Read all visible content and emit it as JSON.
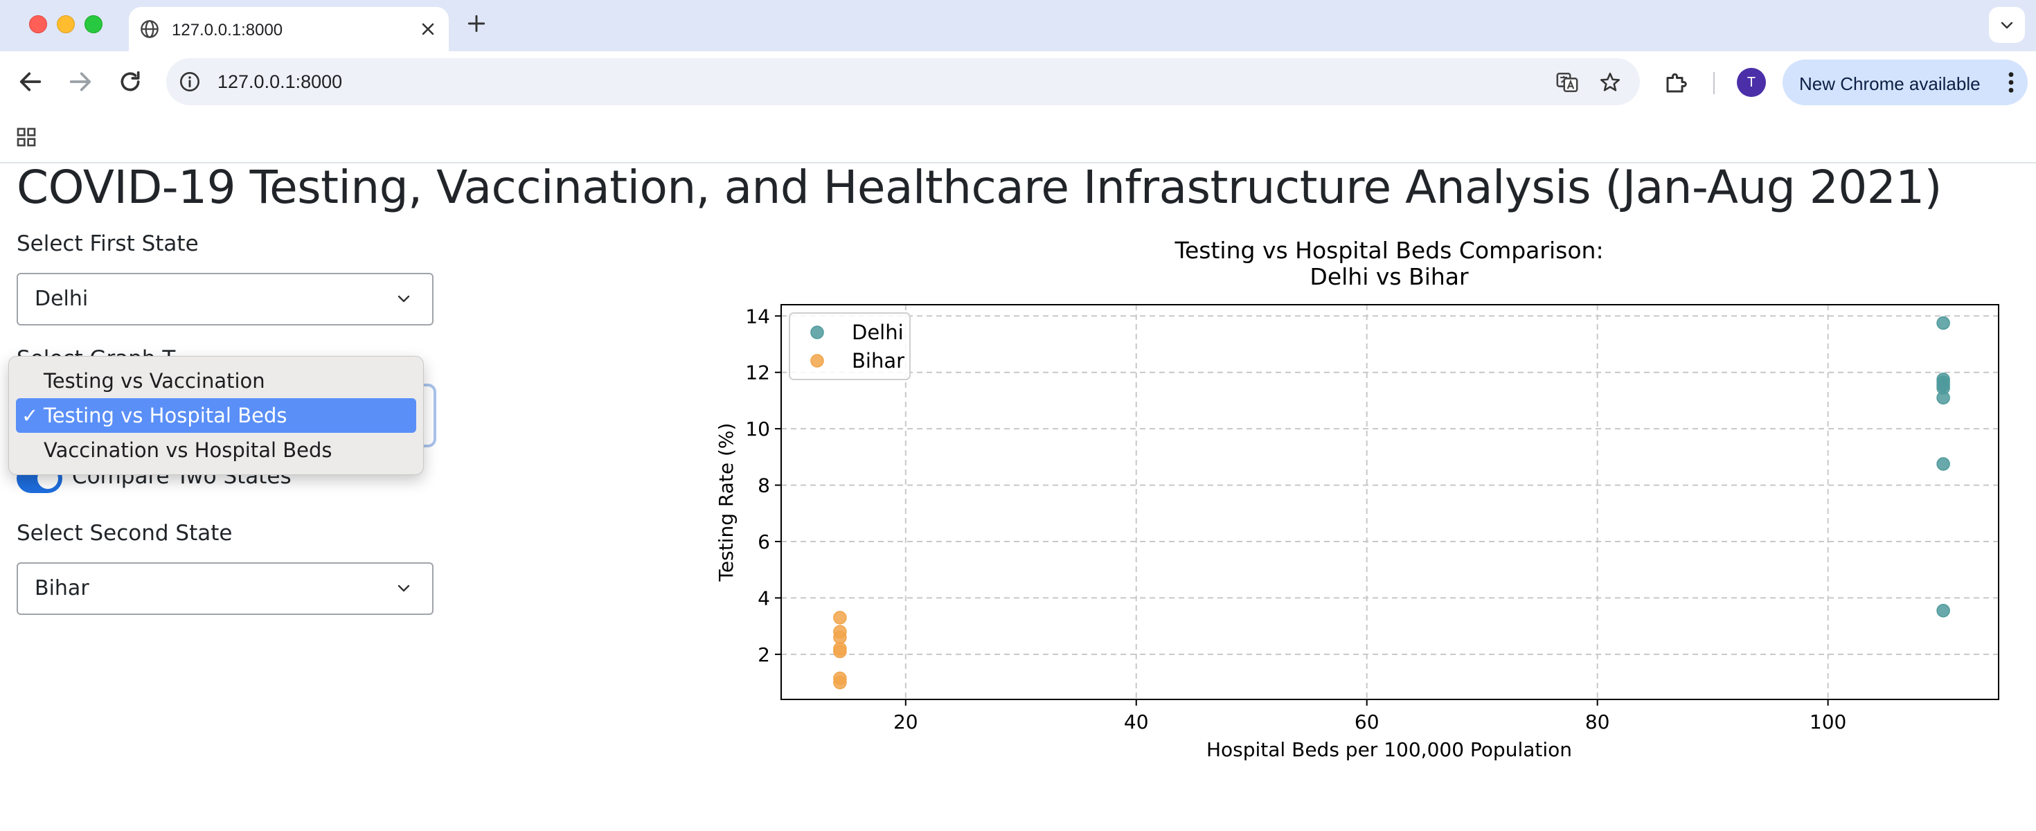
{
  "browser": {
    "tab_title": "127.0.0.1:8000",
    "url": "127.0.0.1:8000",
    "avatar_letter": "T",
    "update_button": "New Chrome available"
  },
  "page": {
    "title": "COVID-19 Testing, Vaccination, and Healthcare Infrastructure Analysis (Jan-Aug 2021)",
    "first_state_label": "Select First State",
    "first_state_value": "Delhi",
    "graph_type_label_partial": "Select Graph T",
    "graph_type_options": [
      "Testing vs Vaccination",
      "Testing vs Hospital Beds",
      "Vaccination vs Hospital Beds"
    ],
    "graph_type_selected": "Testing vs Hospital Beds",
    "check_mark": "✓",
    "compare_label": "Compare Two States",
    "compare_on": true,
    "second_state_label": "Select Second State",
    "second_state_value": "Bihar"
  },
  "colors": {
    "delhi": "#4f9a9c",
    "bihar": "#f2a44a",
    "toggle_on": "#1e6ddd",
    "dropdown_highlight": "#5a8ff7"
  },
  "chart_data": {
    "type": "scatter",
    "title_line1": "Testing vs Hospital Beds Comparison:",
    "title_line2": "Delhi vs Bihar",
    "xlabel": "Hospital Beds per 100,000 Population",
    "ylabel": "Testing Rate (%)",
    "xlim": [
      9.2,
      114.8
    ],
    "ylim": [
      0.4,
      14.4
    ],
    "xticks": [
      20,
      40,
      60,
      80,
      100
    ],
    "yticks": [
      2,
      4,
      6,
      8,
      10,
      12,
      14
    ],
    "grid": true,
    "legend_position": "upper-left",
    "series": [
      {
        "name": "Delhi",
        "color": "#4f9a9c",
        "points": [
          [
            110,
            13.75
          ],
          [
            110,
            11.75
          ],
          [
            110,
            11.65
          ],
          [
            110,
            11.55
          ],
          [
            110,
            11.45
          ],
          [
            110,
            11.1
          ],
          [
            110,
            8.75
          ],
          [
            110,
            3.55
          ]
        ]
      },
      {
        "name": "Bihar",
        "color": "#f2a44a",
        "points": [
          [
            14.3,
            3.3
          ],
          [
            14.3,
            2.8
          ],
          [
            14.3,
            2.6
          ],
          [
            14.3,
            2.2
          ],
          [
            14.3,
            2.1
          ],
          [
            14.3,
            1.15
          ],
          [
            14.3,
            1.0
          ]
        ]
      }
    ]
  }
}
